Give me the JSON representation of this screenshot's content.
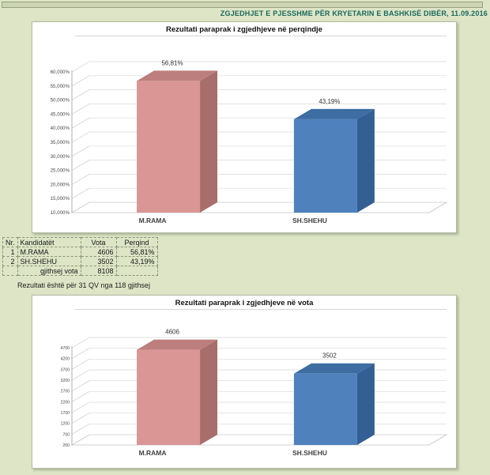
{
  "page": {
    "header_title": "ZGJEDHJET E PJESSHME PËR KRYETARIN E BASHKISË DIBËR, 11.09.2016",
    "note": "Rezultati është për 31 QV nga 118 gjithsej",
    "colors": {
      "background": "#dde5c6",
      "top_strip": "#ccd4b5",
      "header_text": "#1b695d",
      "panel_background": "#ffffff"
    }
  },
  "table": {
    "headers": [
      "Nr.",
      "Kandidatët",
      "Vota",
      "Perqind"
    ],
    "rows": [
      [
        "1",
        "M.RAMA",
        "4606",
        "56,81%"
      ],
      [
        "2",
        "SH.SHEHU",
        "3502",
        "43,19%"
      ],
      [
        "",
        "gjithsej vota",
        "8108",
        ""
      ]
    ],
    "total_label": "gjithsej vota",
    "total_votes": "8108"
  },
  "chart_data": [
    {
      "type": "bar",
      "style": "3d-column",
      "title": "Rezultati paraprak i zgjedhjeve në perqindje",
      "categories": [
        "M.RAMA",
        "SH.SHEHU"
      ],
      "values": [
        56.81,
        43.19
      ],
      "value_labels": [
        "56,81%",
        "43,19%"
      ],
      "xlabel": "",
      "ylabel": "",
      "ylim": [
        10,
        60
      ],
      "ytick_step": 5,
      "ytick_labels": [
        "10,000%",
        "15,000%",
        "20,000%",
        "25,000%",
        "30,000%",
        "35,000%",
        "40,000%",
        "45,000%",
        "50,000%",
        "55,000%",
        "60,000%"
      ],
      "grid": true,
      "legend": "none",
      "bar_colors": [
        {
          "front": "#d99694",
          "top": "#bc7f7d",
          "side": "#a86e6c"
        },
        {
          "front": "#4f81bd",
          "top": "#3d6da3",
          "side": "#345f94"
        }
      ]
    },
    {
      "type": "bar",
      "style": "3d-column",
      "title": "Rezultati paraprak i zgjedhjeve në vota",
      "categories": [
        "M.RAMA",
        "SH.SHEHU"
      ],
      "values": [
        4606,
        3502
      ],
      "value_labels": [
        "4606",
        "3502"
      ],
      "xlabel": "",
      "ylabel": "",
      "ylim": [
        200,
        4700
      ],
      "ytick_step": 500,
      "ytick_labels": [
        "200",
        "700",
        "1200",
        "1700",
        "2200",
        "2700",
        "3200",
        "3700",
        "4200",
        "4700"
      ],
      "grid": true,
      "legend": "none",
      "bar_colors": [
        {
          "front": "#d99694",
          "top": "#bc7f7d",
          "side": "#a86e6c"
        },
        {
          "front": "#4f81bd",
          "top": "#3d6da3",
          "side": "#345f94"
        }
      ]
    }
  ]
}
